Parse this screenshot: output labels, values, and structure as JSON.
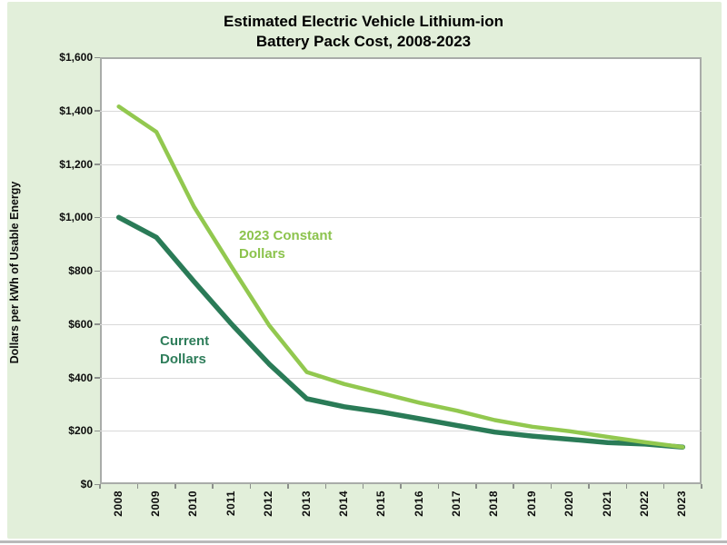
{
  "page": {
    "background": "#ffffff",
    "panel_background": "#e2efda"
  },
  "chart_data": {
    "type": "line",
    "title": "Estimated Electric Vehicle Lithium-ion Battery Pack Cost, 2008-2023",
    "title_lines": [
      "Estimated Electric Vehicle Lithium-ion",
      "Battery Pack Cost, 2008-2023"
    ],
    "ylabel": "Dollars per kWh of Usable Energy",
    "xlabel": "",
    "categories": [
      "2008",
      "2009",
      "2010",
      "2011",
      "2012",
      "2013",
      "2014",
      "2015",
      "2016",
      "2017",
      "2018",
      "2019",
      "2020",
      "2021",
      "2022",
      "2023"
    ],
    "ylim": [
      0,
      1600
    ],
    "ytick_step": 200,
    "ytick_labels": [
      "$0",
      "$200",
      "$400",
      "$600",
      "$800",
      "$1,000",
      "$1,200",
      "$1,400",
      "$1,600"
    ],
    "grid": "horizontal",
    "gridline_color": "#d9d9d9",
    "legend_position": "inline-annotations",
    "series": [
      {
        "name": "Current Dollars",
        "color": "#2a7b57",
        "stroke_width": 5.5,
        "values": [
          1000,
          925,
          760,
          600,
          450,
          320,
          290,
          270,
          245,
          220,
          195,
          180,
          168,
          156,
          150,
          139
        ]
      },
      {
        "name": "2023 Constant Dollars",
        "color": "#92c84f",
        "stroke_width": 4.5,
        "values": [
          1415,
          1320,
          1040,
          815,
          595,
          420,
          375,
          340,
          305,
          275,
          240,
          215,
          198,
          177,
          157,
          139
        ]
      }
    ],
    "annotations": [
      {
        "text": "2023 Constant Dollars",
        "color": "#8cc34d"
      },
      {
        "text": "Current Dollars",
        "color": "#2e7d5a"
      }
    ]
  }
}
